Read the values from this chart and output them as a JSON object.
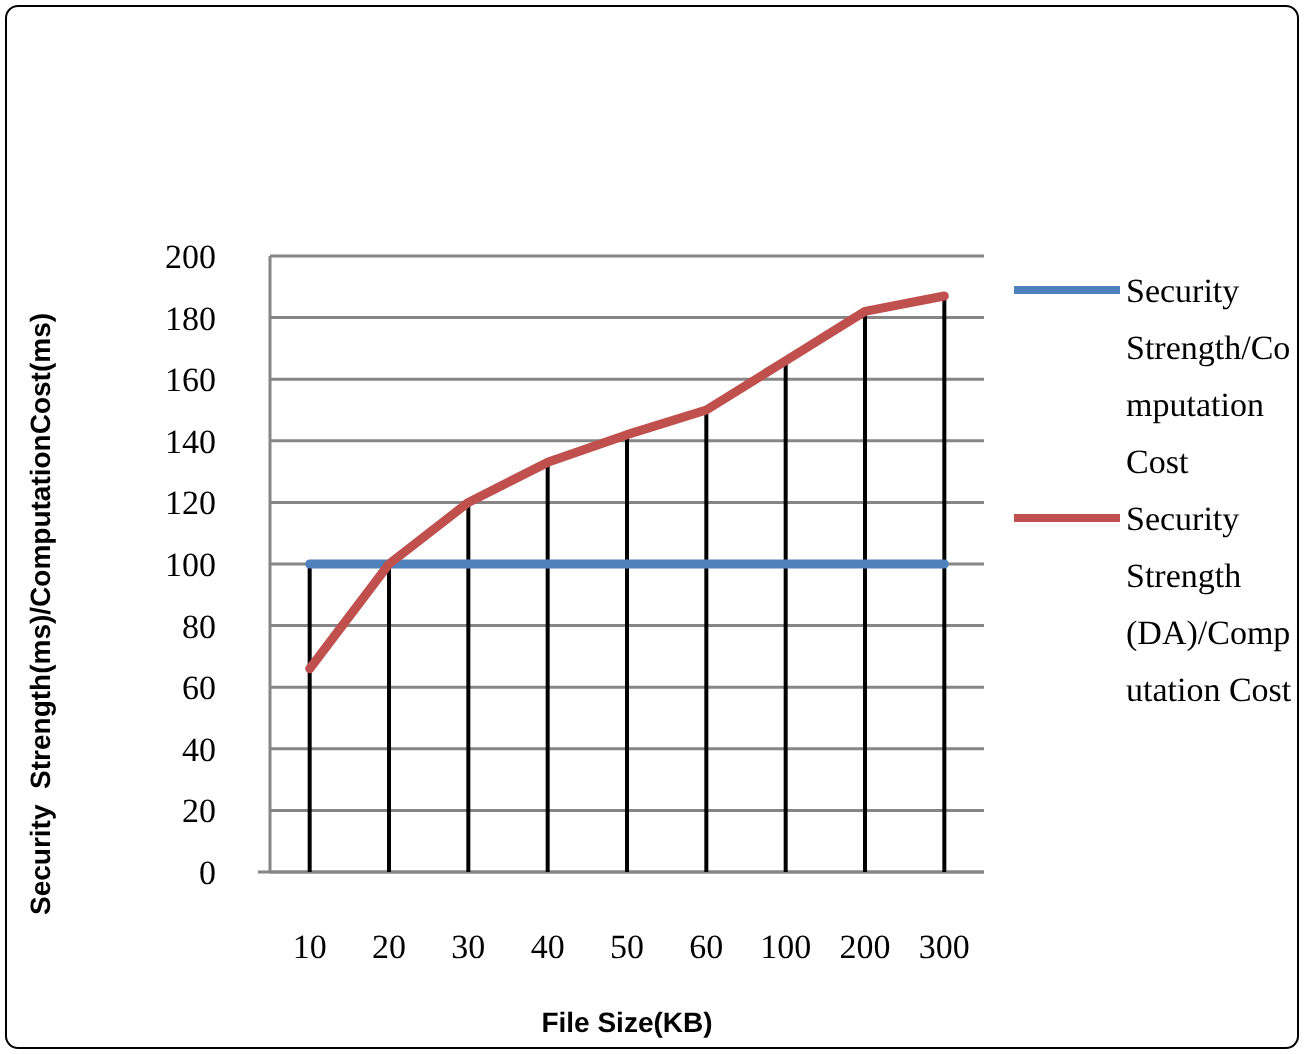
{
  "chart_data": {
    "type": "line",
    "xlabel": "File Size(KB)",
    "ylabel": "Security  Strength(ms)/ComputationCost(ms)",
    "categories": [
      "10",
      "20",
      "30",
      "40",
      "50",
      "60",
      "100",
      "200",
      "300"
    ],
    "ylim": [
      0,
      200
    ],
    "yticks": [
      0,
      20,
      40,
      60,
      80,
      100,
      120,
      140,
      160,
      180,
      200
    ],
    "grid": "y",
    "legend": "right",
    "marker": "none",
    "line_style": "solid",
    "series": [
      {
        "type": "bar",
        "color": "#000000",
        "values": [
          100,
          100,
          120,
          133,
          142,
          150,
          166,
          182,
          187
        ]
      },
      {
        "name": "Security Strength/Computation Cost",
        "color": "#4f81bd",
        "values": [
          100,
          100,
          100,
          100,
          100,
          100,
          100,
          100,
          100
        ]
      },
      {
        "name": "Security Strength (DA)/Computation Cost",
        "color": "#c0504d",
        "values": [
          66,
          100,
          120,
          133,
          142,
          150,
          166,
          182,
          187
        ]
      }
    ]
  }
}
